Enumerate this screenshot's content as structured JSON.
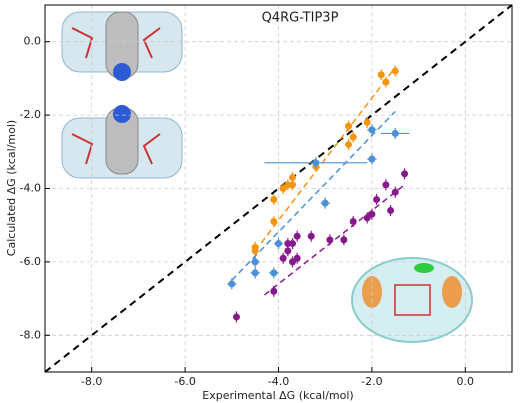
{
  "chart_data": {
    "type": "scatter",
    "title": "Q4RG-TIP3P",
    "x_label": "Experimental ΔG (kcal/mol)",
    "y_label": "Calculated ΔG (kcal/mol)",
    "xlim": [
      -9,
      1
    ],
    "ylim": [
      -9,
      1
    ],
    "xticks": [
      {
        "value": -8,
        "label": "-8.0"
      },
      {
        "value": -6,
        "label": "-6.0"
      },
      {
        "value": -4,
        "label": "-4.0"
      },
      {
        "value": -2,
        "label": "-2.0"
      },
      {
        "value": 0,
        "label": "0.0"
      }
    ],
    "yticks": [
      {
        "value": -8,
        "label": "-8.0"
      },
      {
        "value": -6,
        "label": "-6.0"
      },
      {
        "value": -4,
        "label": "-4.0"
      },
      {
        "value": -2,
        "label": "-2.0"
      },
      {
        "value": 0,
        "label": "0.0"
      }
    ],
    "grid": true,
    "identity_line": true,
    "series": [
      {
        "color": "#f5940f",
        "x": [
          -1.5,
          -1.8,
          -1.7,
          -2.1,
          -2.5,
          -2.4,
          -2.5,
          -3.2,
          -3.7,
          -3.8,
          -3.9,
          -3.7,
          -4.1,
          -4.1,
          -4.5,
          -4.5
        ],
        "values": [
          -0.8,
          -0.9,
          -1.1,
          -2.2,
          -2.3,
          -2.6,
          -2.8,
          -3.4,
          -3.7,
          -3.9,
          -4.0,
          -3.9,
          -4.3,
          -4.9,
          -5.6,
          -5.7
        ],
        "yerr": [
          0.15,
          0.15,
          0.15,
          0.15,
          0.15,
          0.15,
          0.15,
          0.15,
          0.15,
          0.15,
          0.15,
          0.15,
          0.15,
          0.15,
          0.15,
          0.15
        ],
        "fit": {
          "x": [
            -4.5,
            -1.5
          ],
          "y": [
            -5.7,
            -0.7
          ]
        }
      },
      {
        "color": "#4a90d9",
        "x": [
          -1.5,
          -2.0,
          -2.0,
          -3.2,
          -3.0,
          -4.0,
          -4.5,
          -4.5,
          -4.1,
          -5.0
        ],
        "values": [
          -2.5,
          -2.4,
          -3.2,
          -3.3,
          -4.4,
          -5.5,
          -6.0,
          -6.3,
          -6.3,
          -6.6
        ],
        "yerr": [
          0.15,
          0.15,
          0.15,
          0.15,
          0.15,
          0.15,
          0.15,
          0.15,
          0.15,
          0.15
        ],
        "xerr": [
          0.3,
          0.1,
          0.1,
          1.1,
          0.1,
          0.1,
          0.1,
          0.1,
          0.1,
          0.1
        ],
        "fit": {
          "x": [
            -5.0,
            -1.5
          ],
          "y": [
            -6.5,
            -1.9
          ]
        }
      },
      {
        "color": "#861a8a",
        "x": [
          -1.3,
          -1.5,
          -1.6,
          -1.7,
          -1.9,
          -2.0,
          -2.1,
          -2.4,
          -2.6,
          -2.9,
          -3.3,
          -3.6,
          -3.7,
          -3.8,
          -3.9,
          -3.7,
          -3.8,
          -3.6,
          -4.1,
          -4.9
        ],
        "values": [
          -3.6,
          -4.1,
          -4.6,
          -3.9,
          -4.3,
          -4.7,
          -4.8,
          -4.9,
          -5.4,
          -5.4,
          -5.3,
          -5.3,
          -5.5,
          -5.5,
          -5.9,
          -6.0,
          -5.7,
          -5.9,
          -6.8,
          -7.5
        ],
        "yerr": [
          0.15,
          0.15,
          0.15,
          0.15,
          0.15,
          0.15,
          0.15,
          0.15,
          0.15,
          0.15,
          0.15,
          0.15,
          0.15,
          0.15,
          0.15,
          0.15,
          0.15,
          0.15,
          0.15,
          0.15
        ],
        "fit": {
          "x": [
            -4.3,
            -1.3
          ],
          "y": [
            -6.9,
            -3.9
          ]
        }
      }
    ]
  }
}
